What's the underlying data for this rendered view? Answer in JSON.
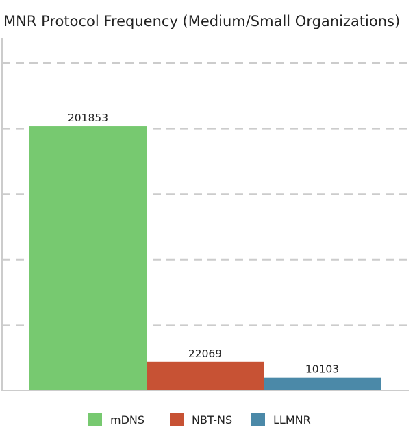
{
  "chart_data": {
    "type": "bar",
    "title": "MNR Protocol Frequency (Medium/Small Organizations)",
    "xlabel": "",
    "ylabel": "",
    "categories": [
      "mDNS",
      "NBT-NS",
      "LLMNR"
    ],
    "values": [
      201853,
      22069,
      10103
    ],
    "colors": [
      "#77c970",
      "#c75234",
      "#4b89a8"
    ],
    "ylim": [
      0,
      250000
    ],
    "y_tick_step": 50000,
    "y_tick_labels_visible": false,
    "grid": true,
    "grid_style": "dashed",
    "legend": {
      "position": "bottom-center",
      "entries": [
        "mDNS",
        "NBT-NS",
        "LLMNR"
      ]
    },
    "data_labels": [
      "201853",
      "22069",
      "10103"
    ]
  }
}
